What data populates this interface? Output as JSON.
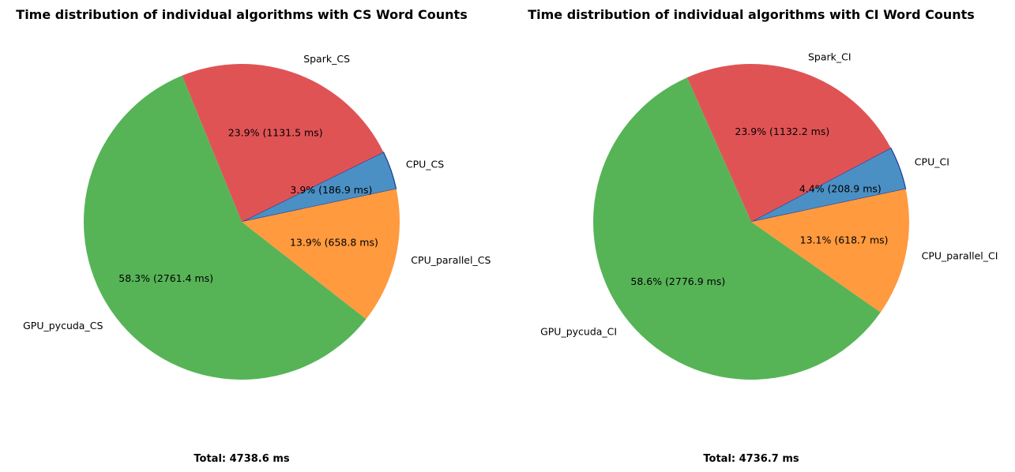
{
  "chart_data": [
    {
      "type": "pie",
      "title": "Time distribution of individual algorithms with CS Word Counts",
      "unit": "ms",
      "start_angle_deg": 12,
      "direction": "counterclockwise",
      "slices": [
        {
          "label": "CPU_CS",
          "value": 186.9,
          "percent_label": "3.9%  (186.9 ms)",
          "color": "#4a90c4",
          "highlighted": true
        },
        {
          "label": "Spark_CS",
          "value": 1131.5,
          "percent_label": "23.9%  (1131.5 ms)",
          "color": "#e05355",
          "highlighted": false
        },
        {
          "label": "GPU_pycuda_CS",
          "value": 2761.4,
          "percent_label": "58.3%  (2761.4 ms)",
          "color": "#56b457",
          "highlighted": false
        },
        {
          "label": "CPU_parallel_CS",
          "value": 658.8,
          "percent_label": "13.9%  (658.8 ms)",
          "color": "#ff9a3e",
          "highlighted": false
        }
      ],
      "total_label": "Total: 4738.6 ms"
    },
    {
      "type": "pie",
      "title": "Time distribution of individual algorithms with CI Word Counts",
      "unit": "ms",
      "start_angle_deg": 12,
      "direction": "counterclockwise",
      "slices": [
        {
          "label": "CPU_CI",
          "value": 208.9,
          "percent_label": "4.4%  (208.9 ms)",
          "color": "#4a90c4",
          "highlighted": true
        },
        {
          "label": "Spark_CI",
          "value": 1132.2,
          "percent_label": "23.9%  (1132.2 ms)",
          "color": "#e05355",
          "highlighted": false
        },
        {
          "label": "GPU_pycuda_CI",
          "value": 2776.9,
          "percent_label": "58.6%  (2776.9 ms)",
          "color": "#56b457",
          "highlighted": false
        },
        {
          "label": "CPU_parallel_CI",
          "value": 618.7,
          "percent_label": "13.1%  (618.7 ms)",
          "color": "#ff9a3e",
          "highlighted": false
        }
      ],
      "total_label": "Total: 4736.7 ms"
    }
  ],
  "colors": {
    "highlight_edge": "#1f3a9e"
  }
}
